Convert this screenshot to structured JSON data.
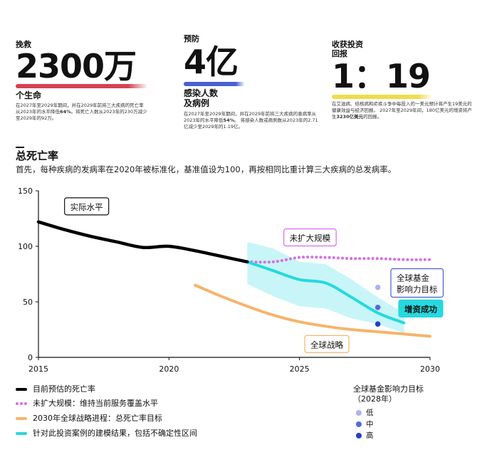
{
  "stats": [
    {
      "label": "挽救",
      "value": "2300万",
      "unit": "个生命",
      "bar_color": "#d64154",
      "desc_parts": [
        "在2027年至2029年期间，并在2029年前将三大疾病的死亡率从2023年的水平降低",
        "64%",
        "。将死亡人数从2023年的230万减少至2029年的92万。"
      ]
    },
    {
      "label": "预防",
      "value": "4亿",
      "unit": "感染人数\n及病例",
      "bar_color": "#4a5fd1",
      "desc_parts": [
        "在2027年至2029年期间，并在2029年前将三大疾病的患病率从2023年的水平降低",
        "54%",
        "。 将感染人数或病例数从2023年的2.71亿减少至2029年的1.19亿。"
      ]
    },
    {
      "label": "收获投资\n回报",
      "value": "1：19",
      "unit": "",
      "bar_color": "#f0dc4a",
      "desc_parts": [
        "在艾滋病、结核病和疟疾斗争中每投入的一美元预计将产生19美元的健康效益与经济回报。 2027年至2029年间，180亿美元的增资将产生",
        "3230亿美元",
        "的回报。"
      ]
    }
  ],
  "section": {
    "title": "总死亡率",
    "subtitle": "首先，每种疾病的发病率在2020年被标准化，基准值设为100，再按相同比重计算三大疾病的总发病率。"
  },
  "chart_data": {
    "type": "line",
    "xlim": [
      2015,
      2030
    ],
    "ylim": [
      0,
      150
    ],
    "x_ticks": [
      "2015",
      "2020",
      "2025",
      "2030"
    ],
    "y_ticks": [
      "0",
      "50",
      "100",
      "150"
    ],
    "grid": false,
    "series": [
      {
        "name": "目前预估的死亡率",
        "color": "#000000",
        "style": "solid",
        "x": [
          2015,
          2016,
          2017,
          2018,
          2019,
          2020,
          2021,
          2022,
          2023
        ],
        "y": [
          122,
          115,
          109,
          104,
          99,
          100,
          96,
          91,
          86
        ]
      },
      {
        "name": "未扩大规模：维持当前服务覆盖水平",
        "color": "#d76ee6",
        "style": "dotted",
        "x": [
          2023,
          2024,
          2025,
          2026,
          2027,
          2028,
          2029,
          2030
        ],
        "y": [
          86,
          86,
          90,
          90,
          89,
          89,
          88,
          88
        ]
      },
      {
        "name": "2030年全球战略进程：总死亡率目标",
        "color": "#f6b46a",
        "style": "solid",
        "x": [
          2021,
          2022,
          2023,
          2024,
          2025,
          2026,
          2027,
          2028,
          2029,
          2030
        ],
        "y": [
          65,
          55,
          46,
          38,
          32,
          28,
          25,
          23,
          21,
          19
        ]
      },
      {
        "name": "针对此投资案例的建模结果，包括不确定性区间",
        "color": "#25d9df",
        "style": "solid",
        "x": [
          2023,
          2024,
          2025,
          2026,
          2027,
          2028,
          2029
        ],
        "y": [
          86,
          78,
          70,
          67,
          54,
          40,
          31
        ],
        "lower": [
          66,
          55,
          46,
          44,
          35,
          30,
          22
        ],
        "upper": [
          104,
          98,
          86,
          84,
          70,
          54,
          40
        ]
      }
    ],
    "points": [
      {
        "label": "低",
        "x": 2028,
        "y": 63,
        "color": "#aab4ef"
      },
      {
        "label": "中",
        "x": 2028,
        "y": 45,
        "color": "#5569d8"
      },
      {
        "label": "高",
        "x": 2028,
        "y": 30,
        "color": "#2440c8"
      }
    ],
    "annotations": [
      {
        "text": "实际水平",
        "x": 2016,
        "y": 136,
        "border": "#111111",
        "fill": "#ffffff",
        "text_color": "#111111"
      },
      {
        "text": "未扩大规模",
        "x": 2024.4,
        "y": 108,
        "border": "#d76ee6",
        "fill": "#ffffff",
        "text_color": "#111111"
      },
      {
        "text": "全球基金\n影响力目标",
        "x": 2028.5,
        "y": 67,
        "border": "#4a5fd1",
        "fill": "#ffffff",
        "text_color": "#111111"
      },
      {
        "text": "增资成功",
        "x": 2028.8,
        "y": 44,
        "border": "#25d9df",
        "fill": "#25d9df",
        "text_color": "#111111"
      },
      {
        "text": "全球战略",
        "x": 2025.2,
        "y": 12,
        "border": "#f6b46a",
        "fill": "#ffffff",
        "text_color": "#111111"
      }
    ],
    "legend": {
      "title": "全球基金影响力目标\n（2028年）"
    }
  }
}
